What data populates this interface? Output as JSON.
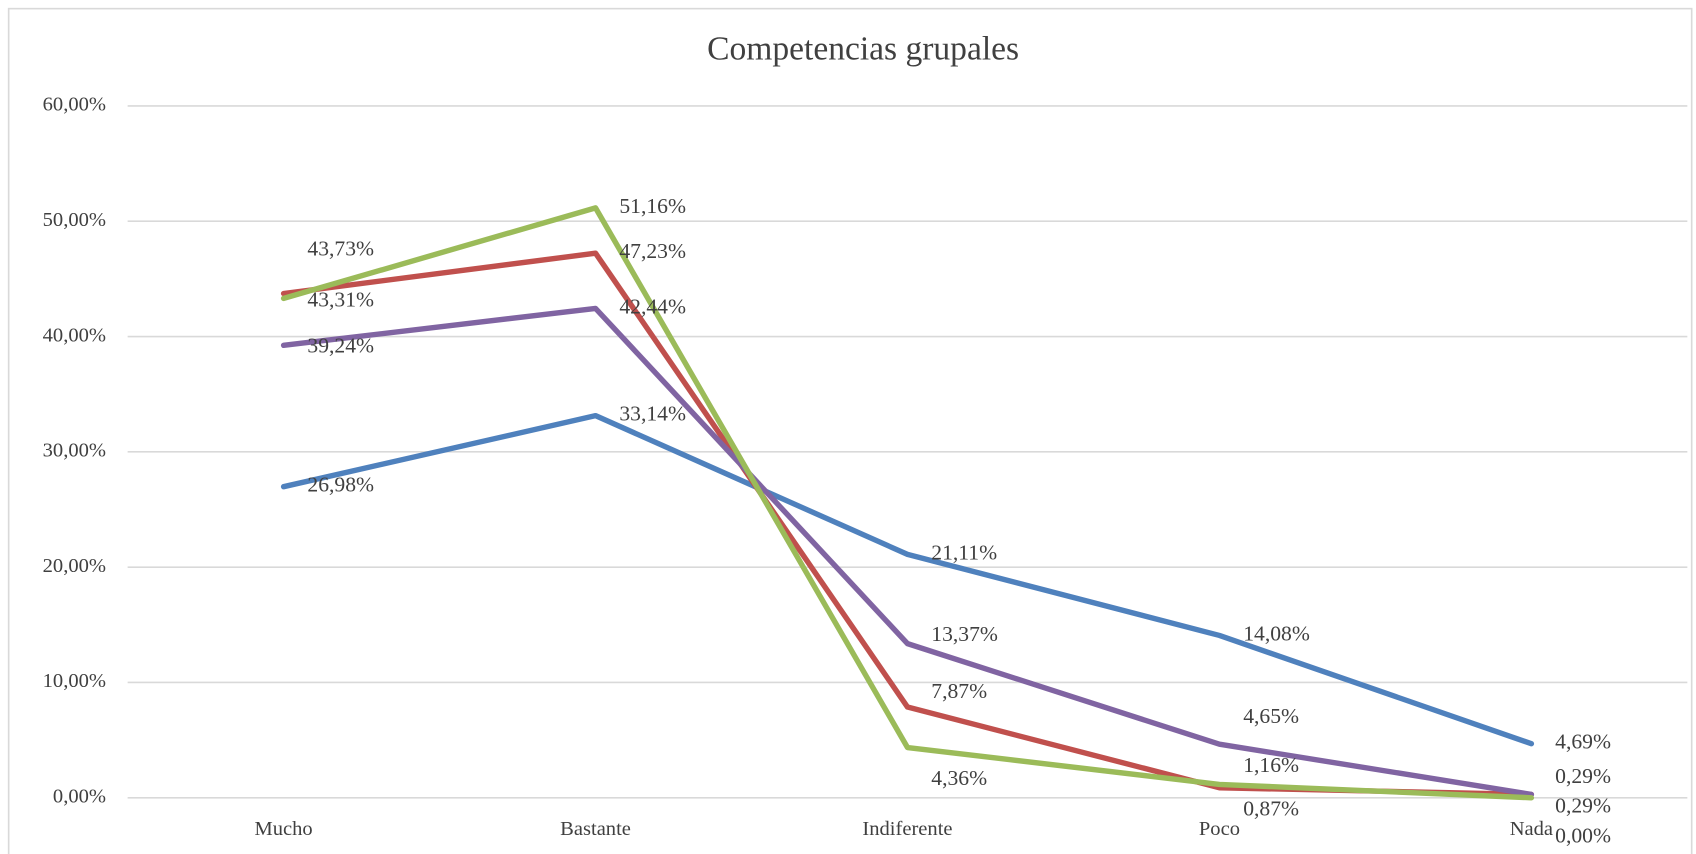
{
  "chart_data": {
    "type": "line",
    "title": "Competencias grupales",
    "categories": [
      "Mucho",
      "Bastante",
      "Indiferente",
      "Poco",
      "Nada"
    ],
    "ylim": [
      0,
      60
    ],
    "yticks": [
      {
        "value": 0,
        "label": "0,00%"
      },
      {
        "value": 10,
        "label": "10,00%"
      },
      {
        "value": 20,
        "label": "20,00%"
      },
      {
        "value": 30,
        "label": "30,00%"
      },
      {
        "value": 40,
        "label": "40,00%"
      },
      {
        "value": 50,
        "label": "50,00%"
      },
      {
        "value": 60,
        "label": "60,00%"
      }
    ],
    "grid": true,
    "series": [
      {
        "color": "#4f81bd",
        "values": [
          26.98,
          33.14,
          21.11,
          14.08,
          4.69
        ],
        "value_labels": [
          "26,98%",
          "33,14%",
          "21,11%",
          "14,08%",
          "4,69%"
        ]
      },
      {
        "color": "#c0504d",
        "values": [
          43.73,
          47.23,
          7.87,
          0.87,
          0.29
        ],
        "value_labels": [
          "43,73%",
          "47,23%",
          "7,87%",
          "0,87%",
          "0,29%"
        ]
      },
      {
        "color": "#8064a2",
        "values": [
          39.24,
          42.44,
          13.37,
          4.65,
          0.29
        ],
        "value_labels": [
          "39,24%",
          "42,44%",
          "13,37%",
          "4,65%",
          "0,29%"
        ]
      },
      {
        "color": "#9bbb59",
        "values": [
          43.31,
          51.16,
          4.36,
          1.16,
          0.0
        ],
        "value_labels": [
          "43,31%",
          "51,16%",
          "4,36%",
          "1,16%",
          "0,00%"
        ]
      }
    ]
  }
}
